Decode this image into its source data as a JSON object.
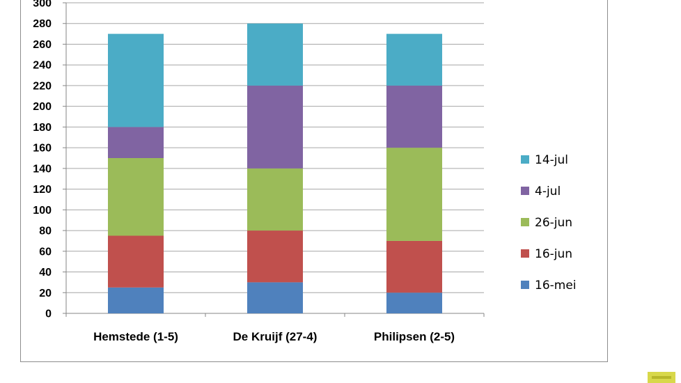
{
  "chart_data": {
    "type": "bar",
    "stacked": true,
    "title": "",
    "xlabel": "",
    "ylabel": "",
    "categories": [
      "Hemstede (1-5)",
      "De Kruijf (27-4)",
      "Philipsen (2-5)"
    ],
    "series": [
      {
        "name": "16-mei",
        "color": "#4f81bd",
        "values": [
          25,
          30,
          20
        ]
      },
      {
        "name": "16-jun",
        "color": "#c0504d",
        "values": [
          50,
          50,
          50
        ]
      },
      {
        "name": "26-jun",
        "color": "#9bbb59",
        "values": [
          75,
          60,
          90
        ]
      },
      {
        "name": "4-jul",
        "color": "#8064a2",
        "values": [
          30,
          80,
          60
        ]
      },
      {
        "name": "14-jul",
        "color": "#4bacc6",
        "values": [
          90,
          60,
          50
        ]
      }
    ],
    "ylim": [
      0,
      300
    ],
    "yticks": [
      0,
      20,
      40,
      60,
      80,
      100,
      120,
      140,
      160,
      180,
      200,
      220,
      240,
      260,
      280,
      300
    ],
    "grid": true,
    "legend": "right",
    "legend_order": [
      "14-jul",
      "4-jul",
      "26-jun",
      "16-jun",
      "16-mei"
    ]
  }
}
